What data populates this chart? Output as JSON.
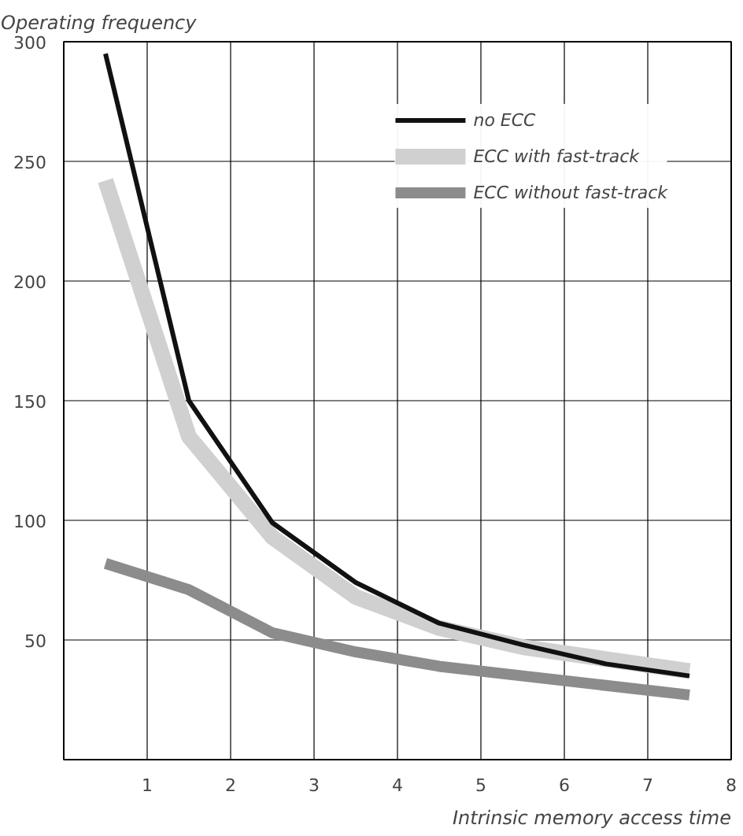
{
  "chart_data": {
    "type": "line",
    "ylabel": "Operating frequency",
    "xlabel": "Intrinsic memory access time",
    "x": [
      0.5,
      1.5,
      2.5,
      3.5,
      4.5,
      5.5,
      6.5,
      7.5
    ],
    "series": [
      {
        "name": "no ECC",
        "color": "#111111",
        "values": [
          295,
          150,
          99,
          74,
          57,
          48,
          40,
          35
        ]
      },
      {
        "name": "ECC with fast-track",
        "color": "#d0d0d0",
        "values": [
          242,
          135,
          93,
          68,
          55,
          47,
          42,
          37
        ]
      },
      {
        "name": "ECC without fast-track",
        "color": "#8c8c8c",
        "values": [
          82,
          71,
          53,
          45,
          39,
          35,
          31,
          27
        ]
      }
    ],
    "xlim": [
      0,
      8
    ],
    "xticks": [
      1,
      2,
      3,
      4,
      5,
      6,
      7,
      8
    ],
    "ylim": [
      0,
      300
    ],
    "yticks": [
      50,
      100,
      150,
      200,
      250,
      300
    ],
    "grid": true,
    "legend": "top right",
    "marker": "none",
    "line_style": "solid"
  }
}
